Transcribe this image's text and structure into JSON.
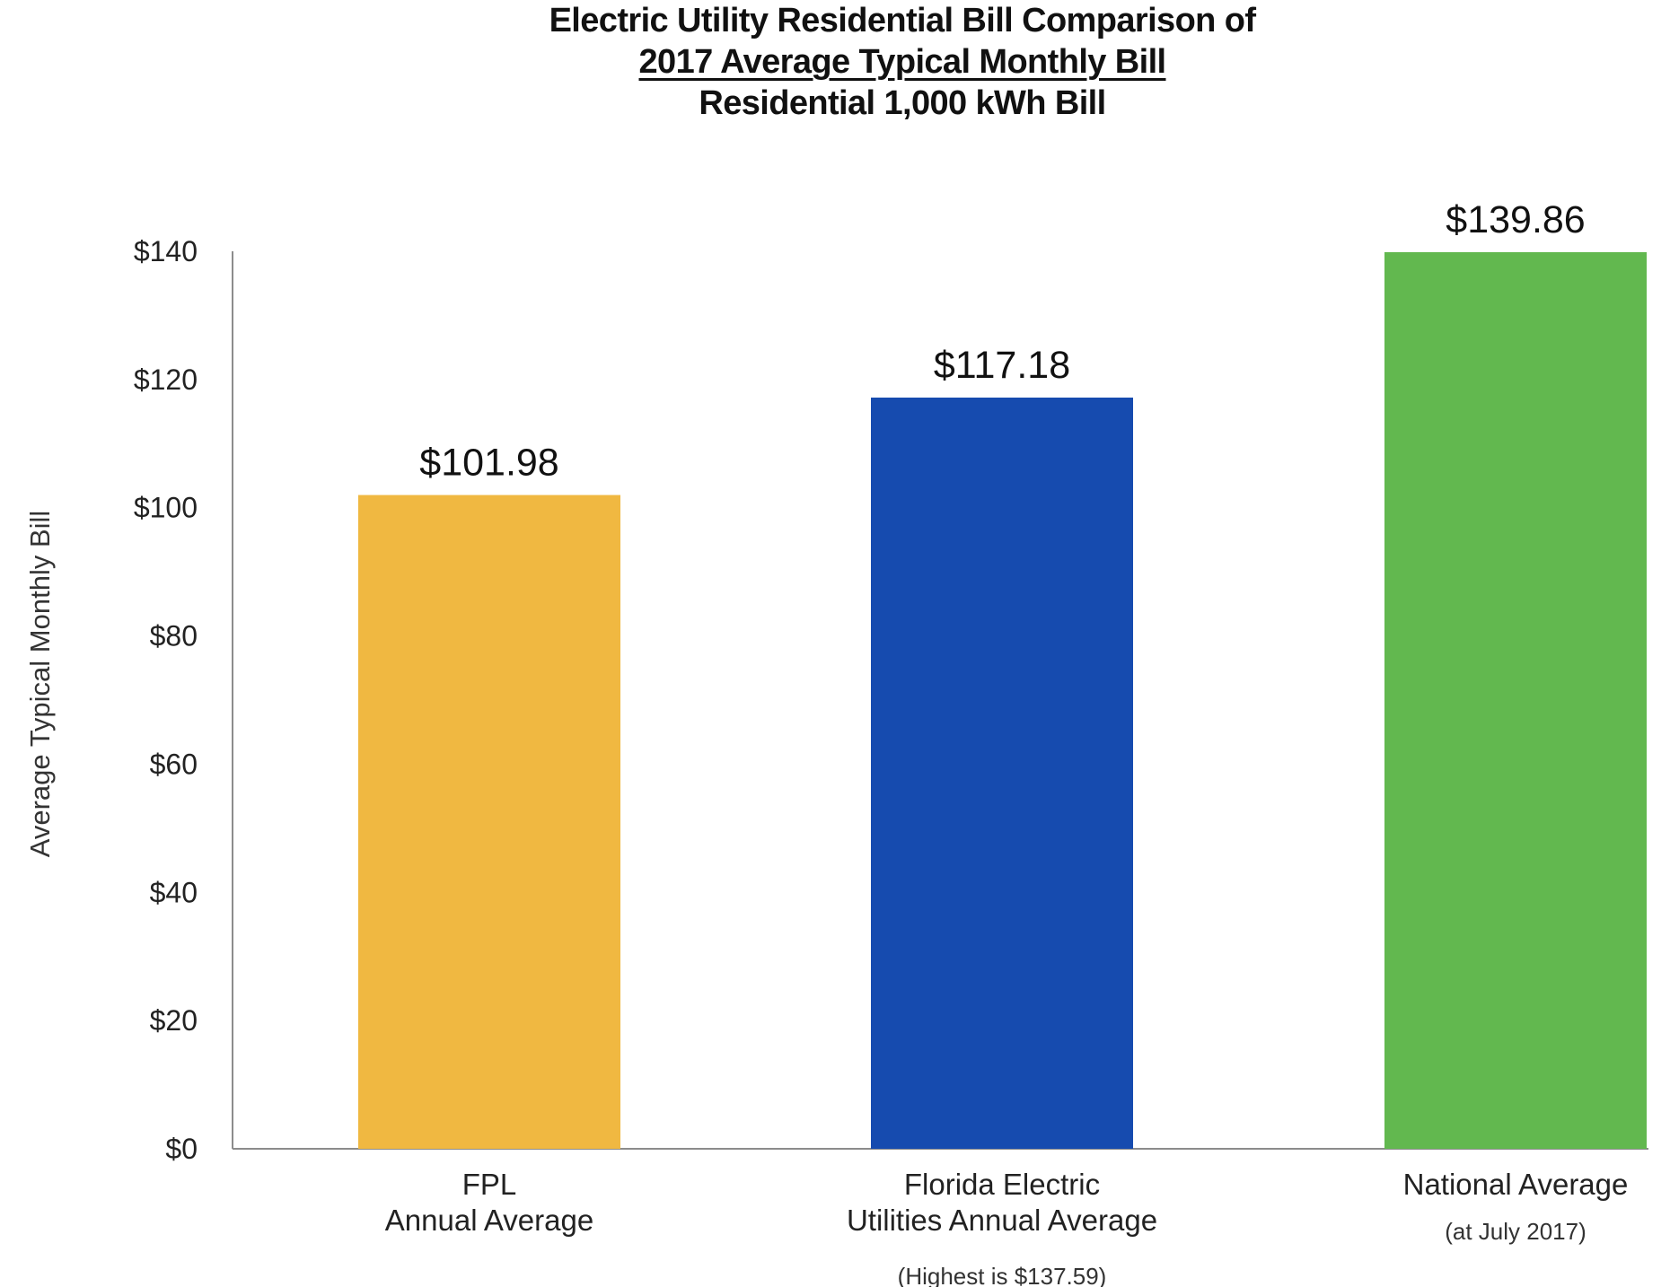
{
  "chart_data": {
    "type": "bar",
    "title_lines": [
      "Electric Utility Residential Bill Comparison of",
      "2017 Average Typical Monthly Bill",
      "Residential 1,000 kWh Bill"
    ],
    "ylabel": "Average Typical Monthly Bill",
    "ylim": [
      0,
      140
    ],
    "yticks": [
      0,
      20,
      40,
      60,
      80,
      100,
      120,
      140
    ],
    "ytick_labels": [
      "$0",
      "$20",
      "$40",
      "$60",
      "$80",
      "$100",
      "$120",
      "$140"
    ],
    "grid": false,
    "legend": "none",
    "categories": [
      {
        "lines": [
          "FPL",
          "Annual Average"
        ],
        "note": ""
      },
      {
        "lines": [
          "Florida Electric",
          "Utilities Annual Average"
        ],
        "note": "(Highest is $137.59)"
      },
      {
        "lines": [
          "National Average"
        ],
        "note": "(at July 2017)"
      }
    ],
    "values": [
      101.98,
      117.18,
      139.86
    ],
    "value_labels": [
      "$101.98",
      "$117.18",
      "$139.86"
    ],
    "colors": [
      "#F0B841",
      "#164BAF",
      "#62B84F"
    ]
  }
}
